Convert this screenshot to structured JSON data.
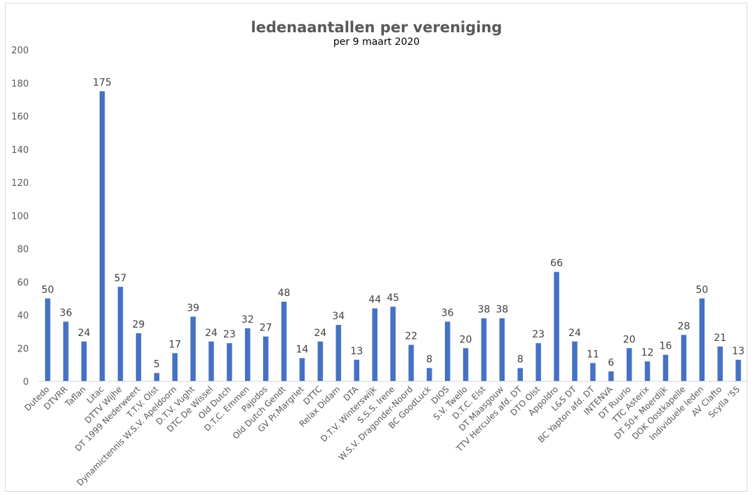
{
  "chart_data": {
    "type": "bar",
    "title": "ledenaantallen per vereniging",
    "subtitle": "per 9 maart 2020",
    "ylim": [
      0,
      200
    ],
    "yticks": [
      0,
      20,
      40,
      60,
      80,
      100,
      120,
      140,
      160,
      180,
      200
    ],
    "grid": false,
    "bar_color": "#4472c4",
    "categories": [
      "Dutedo",
      "DTVRR",
      "Taflan",
      "Litac",
      "DTTV Wijhe",
      "DT 1999 Nederweert",
      "T.T.V. Olst",
      "Dynamictennis W.S.V. Apeldoorn",
      "D.T.V. Vught",
      "DTC De Wissel",
      "Old Dutch",
      "D.T.C. Emmen",
      "Pajodos",
      "Old Dutch Gendt",
      "GV Pr.Margriet",
      "DTTC",
      "Relax Didam",
      "DTA",
      "D.T.V. Winterswijk",
      "S.S.S. Irene",
      "W.S.V. Dragonder-Noord",
      "BC GoodLuck",
      "DIOS",
      "S.V. Twello",
      "D.T.C. Elst",
      "DT Maasgouw",
      "TTV Hercules afd. DT",
      "DTO Olst",
      "Appoldro",
      "L&S DT",
      "BC Yapton afd. DT",
      "INTENVA",
      "DT Ruurlo",
      "TTC Asterix",
      "DT 50+ Moerdijk",
      "DOK Oostkapelle",
      "Individuele leden",
      "AV Ciafto",
      "Scylla '55"
    ],
    "values": [
      50,
      36,
      24,
      175,
      57,
      29,
      5,
      17,
      39,
      24,
      23,
      32,
      27,
      48,
      14,
      24,
      34,
      13,
      44,
      45,
      22,
      8,
      36,
      20,
      38,
      38,
      8,
      23,
      66,
      24,
      11,
      6,
      20,
      12,
      16,
      28,
      50,
      21,
      13
    ]
  }
}
